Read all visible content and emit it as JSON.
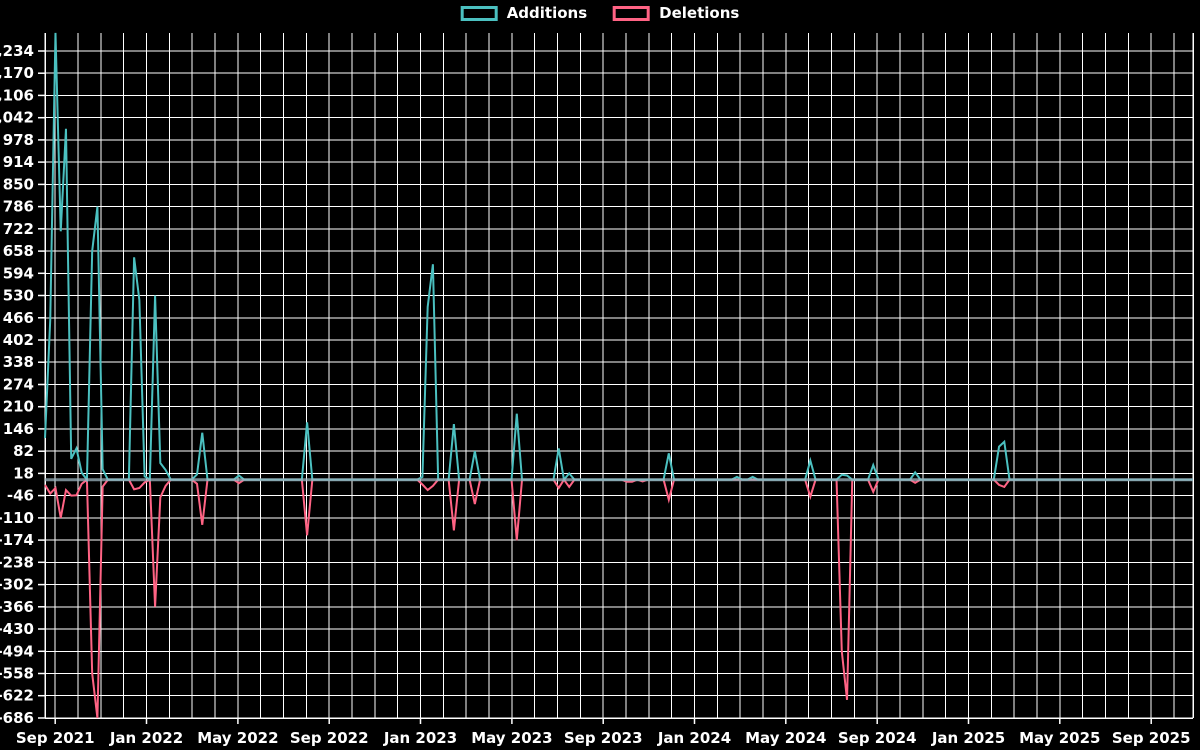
{
  "legend": {
    "additions_label": "Additions",
    "deletions_label": "Deletions"
  },
  "chart_data": {
    "type": "line",
    "title": "",
    "xlabel": "",
    "ylabel": "",
    "grid": true,
    "legend_position": "top-center",
    "background_color": "#000000",
    "gridline_color": "#ffffff",
    "zero_line_color": "#9bb3bd",
    "x_unit": "week",
    "weeks_total": 220,
    "x_range_labels": [
      "Sep 2021",
      "Sep 2025"
    ],
    "ylim": [
      -686,
      1286
    ],
    "y_tick_step": 64,
    "y_ticks": [
      "1,234",
      "1,170",
      "1,106",
      "1,042",
      "978",
      "914",
      "850",
      "786",
      "722",
      "658",
      "594",
      "530",
      "466",
      "402",
      "338",
      "274",
      "210",
      "146",
      "82",
      "18",
      "-46",
      "-110",
      "-174",
      "-238",
      "-302",
      "-366",
      "-430",
      "-494",
      "-558",
      "-622",
      "-686"
    ],
    "x_ticks": [
      "Sep 2021",
      "Jan 2022",
      "May 2022",
      "Sep 2022",
      "Jan 2023",
      "May 2023",
      "Sep 2023",
      "Jan 2024",
      "May 2024",
      "Sep 2024",
      "Jan 2025",
      "May 2025",
      "Sep 2025"
    ],
    "series": [
      {
        "name": "Additions",
        "color": "#4bc0c0",
        "default_value": 0
      },
      {
        "name": "Deletions",
        "color": "#ff6384",
        "default_value": 0
      }
    ],
    "events": [
      {
        "week": 0,
        "additions": 120,
        "deletions": -15
      },
      {
        "week": 1,
        "additions": 460,
        "deletions": -40
      },
      {
        "week": 2,
        "additions": 1286,
        "deletions": -24
      },
      {
        "week": 3,
        "additions": 715,
        "deletions": -110
      },
      {
        "week": 4,
        "additions": 1010,
        "deletions": -30
      },
      {
        "week": 5,
        "additions": 60,
        "deletions": -46
      },
      {
        "week": 6,
        "additions": 90,
        "deletions": -45
      },
      {
        "week": 7,
        "additions": 20,
        "deletions": -12
      },
      {
        "week": 9,
        "additions": 658,
        "deletions": -558
      },
      {
        "week": 10,
        "additions": 786,
        "deletions": -686
      },
      {
        "week": 11,
        "additions": 30,
        "deletions": -20
      },
      {
        "week": 17,
        "additions": 640,
        "deletions": -28
      },
      {
        "week": 18,
        "additions": 517,
        "deletions": -24
      },
      {
        "week": 19,
        "additions": 10,
        "deletions": -8
      },
      {
        "week": 21,
        "additions": 530,
        "deletions": -366
      },
      {
        "week": 22,
        "additions": 48,
        "deletions": -51
      },
      {
        "week": 23,
        "additions": 28,
        "deletions": -18
      },
      {
        "week": 29,
        "additions": 15,
        "deletions": -12
      },
      {
        "week": 30,
        "additions": 135,
        "deletions": -130
      },
      {
        "week": 37,
        "additions": 12,
        "deletions": -10
      },
      {
        "week": 50,
        "additions": 165,
        "deletions": -160
      },
      {
        "week": 72,
        "additions": 8,
        "deletions": -14
      },
      {
        "week": 73,
        "additions": 497,
        "deletions": -30
      },
      {
        "week": 74,
        "additions": 620,
        "deletions": -18
      },
      {
        "week": 78,
        "additions": 160,
        "deletions": -146
      },
      {
        "week": 82,
        "additions": 82,
        "deletions": -70
      },
      {
        "week": 90,
        "additions": 190,
        "deletions": -174
      },
      {
        "week": 98,
        "additions": 90,
        "deletions": -24
      },
      {
        "week": 100,
        "additions": 18,
        "deletions": -21
      },
      {
        "week": 111,
        "additions": 0,
        "deletions": -6
      },
      {
        "week": 112,
        "additions": 0,
        "deletions": -6
      },
      {
        "week": 114,
        "additions": 0,
        "deletions": -5
      },
      {
        "week": 119,
        "additions": 76,
        "deletions": -58
      },
      {
        "week": 132,
        "additions": 8,
        "deletions": 0
      },
      {
        "week": 135,
        "additions": 8,
        "deletions": 0
      },
      {
        "week": 146,
        "additions": 55,
        "deletions": -49
      },
      {
        "week": 152,
        "additions": 14,
        "deletions": -494
      },
      {
        "week": 153,
        "additions": 12,
        "deletions": -634
      },
      {
        "week": 158,
        "additions": 42,
        "deletions": -35
      },
      {
        "week": 166,
        "additions": 21,
        "deletions": -9
      },
      {
        "week": 182,
        "additions": 95,
        "deletions": -15
      },
      {
        "week": 183,
        "additions": 109,
        "deletions": -21
      }
    ]
  }
}
